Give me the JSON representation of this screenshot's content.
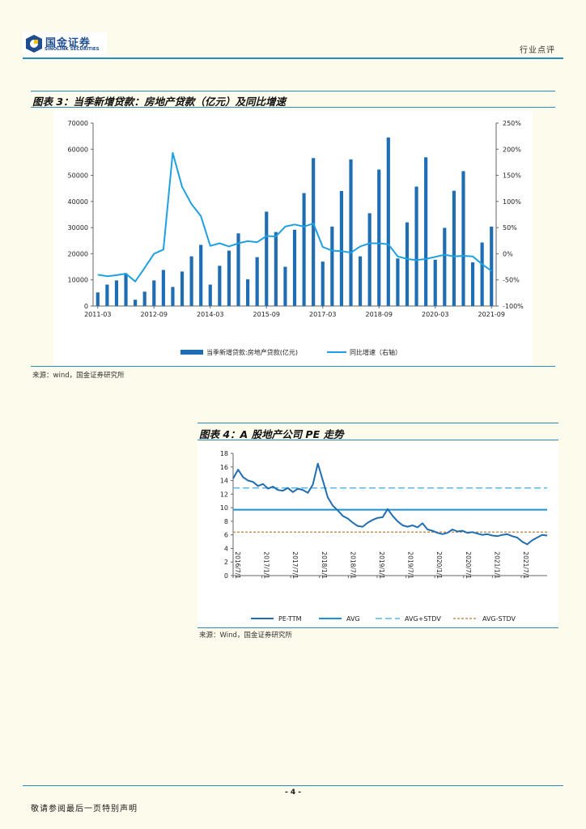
{
  "header": {
    "logo_cn": "国金证券",
    "logo_en": "SINOLINK SECURITIES",
    "section": "行业点评",
    "brand_color": "#1f4d8f",
    "accent_color": "#2b8cc4"
  },
  "figure3": {
    "title": "图表 3：当季新增贷款：房地产贷款（亿元）及同比增速",
    "source": "来源：wind，国金证券研究所"
  },
  "figure4": {
    "title": "图表 4：A 股地产公司 PE 走势",
    "source": "来源：Wind，国金证券研究所"
  },
  "footer": {
    "page": "- 4 -",
    "note": "敬请参阅最后一页特别声明"
  },
  "chart_data": [
    {
      "type": "bar+line",
      "title": "当季新增贷款：房地产贷款（亿元）及同比增速",
      "categories": [
        "2011-03",
        "2011-06",
        "2011-09",
        "2011-12",
        "2012-03",
        "2012-06",
        "2012-09",
        "2012-12",
        "2013-03",
        "2013-06",
        "2013-09",
        "2013-12",
        "2014-03",
        "2014-06",
        "2014-09",
        "2014-12",
        "2015-03",
        "2015-06",
        "2015-09",
        "2015-12",
        "2016-03",
        "2016-06",
        "2016-09",
        "2016-12",
        "2017-03",
        "2017-06",
        "2017-09",
        "2017-12",
        "2018-03",
        "2018-06",
        "2018-09",
        "2018-12",
        "2019-03",
        "2019-06",
        "2019-09",
        "2019-12",
        "2020-03",
        "2020-06",
        "2020-09",
        "2020-12",
        "2021-03",
        "2021-06",
        "2021-09"
      ],
      "x_tick_labels": [
        "2011-03",
        "2012-09",
        "2014-03",
        "2015-09",
        "2017-03",
        "2018-09",
        "2020-03",
        "2021-09"
      ],
      "series": [
        {
          "name": "当季新增贷款:房地产贷款(亿元)",
          "axis": "left",
          "color": "#1f6db3",
          "values": [
            5200,
            8200,
            9800,
            12500,
            2400,
            5500,
            9800,
            13800,
            7300,
            13200,
            19000,
            23400,
            8200,
            15400,
            21200,
            27800,
            10200,
            18700,
            36100,
            28300,
            15000,
            29200,
            43200,
            56600,
            17000,
            30400,
            44000,
            56100,
            19000,
            35500,
            52200,
            64500,
            18200,
            32000,
            45700,
            56900,
            17700,
            29900,
            44100,
            51600,
            16700,
            24300,
            30400
          ]
        },
        {
          "name": "同比增速（右轴）",
          "axis": "right",
          "color": "#1ea1e0",
          "values": [
            -40,
            -43,
            -41,
            -38,
            -53,
            -27,
            0,
            8,
            193,
            128,
            95,
            72,
            15,
            20,
            14,
            20,
            24,
            22,
            34,
            33,
            52,
            56,
            52,
            58,
            13,
            6,
            5,
            2,
            14,
            20,
            20,
            18,
            -5,
            -10,
            -12,
            -10,
            -6,
            -2,
            -5,
            -4,
            -5,
            -20,
            -33
          ]
        }
      ],
      "y_left": {
        "ticks": [
          "0",
          "10000",
          "20000",
          "30000",
          "40000",
          "50000",
          "60000",
          "70000"
        ],
        "ylim": [
          0,
          70000
        ]
      },
      "y_right": {
        "ticks": [
          "-100%",
          "-50%",
          "0%",
          "50%",
          "100%",
          "150%",
          "200%",
          "250%"
        ],
        "ylim": [
          -100,
          250
        ]
      },
      "legend": [
        "当季新增贷款:房地产贷款(亿元)",
        "同比增速（右轴）"
      ],
      "legend_position": "bottom"
    },
    {
      "type": "line",
      "title": "A 股地产公司 PE 走势",
      "x_tick_labels": [
        "2016/7/1",
        "2017/1/1",
        "2017/7/1",
        "2018/1/1",
        "2018/7/1",
        "2019/1/1",
        "2019/7/1",
        "2020/1/1",
        "2020/7/1",
        "2021/1/1",
        "2021/7/1"
      ],
      "x_range": [
        0,
        63
      ],
      "pe_ttm_points": [
        [
          0,
          14.3
        ],
        [
          1,
          15.6
        ],
        [
          2,
          14.5
        ],
        [
          3,
          14.0
        ],
        [
          4,
          13.8
        ],
        [
          5,
          13.2
        ],
        [
          6,
          13.5
        ],
        [
          7,
          12.8
        ],
        [
          8,
          13.1
        ],
        [
          9,
          12.6
        ],
        [
          10,
          12.5
        ],
        [
          11,
          12.9
        ],
        [
          12,
          12.3
        ],
        [
          13,
          12.8
        ],
        [
          14,
          12.6
        ],
        [
          15,
          12.2
        ],
        [
          16,
          13.4
        ],
        [
          17,
          16.5
        ],
        [
          18,
          14.0
        ],
        [
          19,
          11.5
        ],
        [
          20,
          10.3
        ],
        [
          21,
          9.6
        ],
        [
          22,
          8.8
        ],
        [
          23,
          8.4
        ],
        [
          24,
          7.8
        ],
        [
          25,
          7.3
        ],
        [
          26,
          7.2
        ],
        [
          27,
          7.8
        ],
        [
          28,
          8.2
        ],
        [
          29,
          8.5
        ],
        [
          30,
          8.6
        ],
        [
          31,
          9.8
        ],
        [
          32,
          8.8
        ],
        [
          33,
          8.0
        ],
        [
          34,
          7.4
        ],
        [
          35,
          7.2
        ],
        [
          36,
          7.4
        ],
        [
          37,
          7.1
        ],
        [
          38,
          7.7
        ],
        [
          39,
          6.8
        ],
        [
          40,
          6.6
        ],
        [
          41,
          6.3
        ],
        [
          42,
          6.1
        ],
        [
          43,
          6.3
        ],
        [
          44,
          6.8
        ],
        [
          45,
          6.5
        ],
        [
          46,
          6.6
        ],
        [
          47,
          6.3
        ],
        [
          48,
          6.4
        ],
        [
          49,
          6.2
        ],
        [
          50,
          6.0
        ],
        [
          51,
          6.1
        ],
        [
          52,
          5.9
        ],
        [
          53,
          5.8
        ],
        [
          54,
          6.0
        ],
        [
          55,
          6.1
        ],
        [
          56,
          5.8
        ],
        [
          57,
          5.6
        ],
        [
          58,
          5.0
        ],
        [
          59,
          4.6
        ],
        [
          60,
          5.2
        ],
        [
          61,
          5.6
        ],
        [
          62,
          6.0
        ],
        [
          63,
          5.9
        ]
      ],
      "avg": 9.7,
      "avg_plus_stdv": 12.9,
      "avg_minus_stdv": 6.4,
      "y_ticks": [
        "0",
        "2",
        "4",
        "6",
        "8",
        "10",
        "12",
        "14",
        "16",
        "18"
      ],
      "ylim": [
        0,
        18
      ],
      "legend": [
        "PE-TTM",
        "AVG",
        "AVG+STDV",
        "AVG-STDV"
      ],
      "legend_position": "bottom",
      "colors": {
        "pe": "#1f6db3",
        "avg": "#1e90d6",
        "avg_plus": "#5cb6ea",
        "avg_minus": "#c8935a"
      }
    }
  ]
}
